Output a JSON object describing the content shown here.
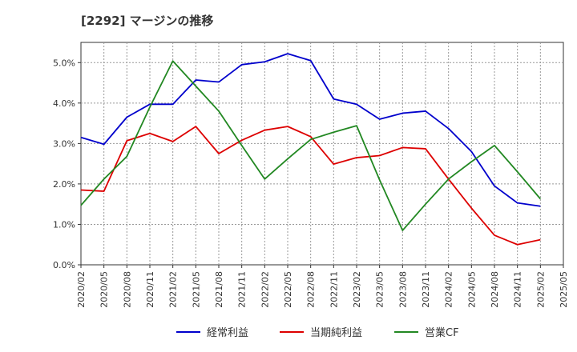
{
  "chart_data": {
    "type": "line",
    "title": "[2292]  マージンの推移",
    "xlabel": "",
    "ylabel": "",
    "ylim": [
      0,
      5.5
    ],
    "yticks": [
      0,
      1,
      2,
      3,
      4,
      5
    ],
    "ytick_labels": [
      "0.0%",
      "1.0%",
      "2.0%",
      "3.0%",
      "4.0%",
      "5.0%"
    ],
    "x": [
      "2020/02",
      "2020/05",
      "2020/08",
      "2020/11",
      "2021/02",
      "2021/05",
      "2021/08",
      "2021/11",
      "2022/02",
      "2022/05",
      "2022/08",
      "2022/11",
      "2023/02",
      "2023/05",
      "2023/08",
      "2023/11",
      "2024/02",
      "2024/05",
      "2024/08",
      "2024/11",
      "2025/02",
      "2025/05"
    ],
    "grid": true,
    "legend_position": "bottom",
    "series": [
      {
        "name": "経常利益",
        "color": "#0000cc",
        "values": [
          3.15,
          2.98,
          3.65,
          3.97,
          3.97,
          4.57,
          4.52,
          4.95,
          5.02,
          5.22,
          5.05,
          4.1,
          3.97,
          3.6,
          3.75,
          3.8,
          3.37,
          2.8,
          1.95,
          1.53,
          1.45,
          null
        ]
      },
      {
        "name": "当期純利益",
        "color": "#dd0000",
        "values": [
          1.85,
          1.82,
          3.07,
          3.25,
          3.05,
          3.42,
          2.75,
          3.08,
          3.33,
          3.42,
          3.17,
          2.49,
          2.65,
          2.7,
          2.9,
          2.87,
          2.12,
          1.4,
          0.73,
          0.5,
          0.62,
          null
        ]
      },
      {
        "name": "営業CF",
        "color": "#228822",
        "values": [
          1.47,
          2.12,
          2.68,
          3.9,
          5.04,
          4.42,
          3.8,
          2.95,
          2.12,
          2.62,
          3.1,
          3.28,
          3.44,
          2.1,
          0.85,
          1.5,
          2.12,
          2.55,
          2.95,
          2.3,
          1.63,
          null
        ]
      }
    ]
  }
}
